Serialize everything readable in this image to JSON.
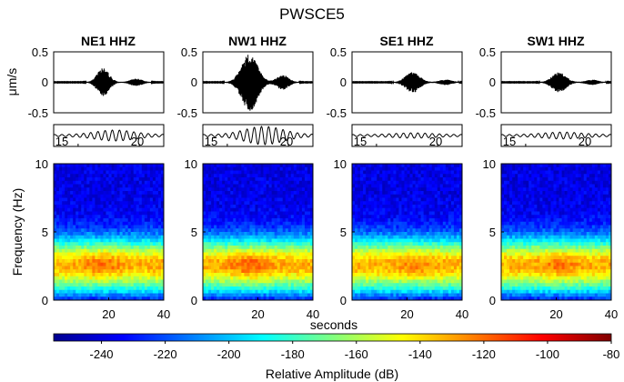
{
  "figure_title": "PWSCE5",
  "chart_data": {
    "type": "heatmap",
    "title": "PWSCE5",
    "panels": [
      {
        "station": "NE1 HHZ",
        "peak_um_s": 0.23,
        "burst_center_s": 18.0,
        "burst_width_s": 3.0,
        "inset_amp": 0.55,
        "spec_peak_s": 18,
        "spec_gain_db": 2
      },
      {
        "station": "NW1 HHZ",
        "peak_um_s": 0.47,
        "burst_center_s": 17.0,
        "burst_width_s": 4.0,
        "inset_amp": 1.0,
        "spec_peak_s": 17,
        "spec_gain_db": 6
      },
      {
        "station": "SE1 HHZ",
        "peak_um_s": 0.17,
        "burst_center_s": 22.0,
        "burst_width_s": 3.5,
        "inset_amp": 0.2,
        "spec_peak_s": 23,
        "spec_gain_db": 0
      },
      {
        "station": "SW1 HHZ",
        "peak_um_s": 0.16,
        "burst_center_s": 21.0,
        "burst_width_s": 3.5,
        "inset_amp": 0.3,
        "spec_peak_s": 21,
        "spec_gain_db": 1
      }
    ],
    "waveform": {
      "ylabel": "μm/s",
      "ylim": [
        -0.5,
        0.5
      ],
      "yticks": [
        "0.5",
        "0",
        "-0.5"
      ],
      "xlim": [
        0,
        40
      ]
    },
    "inset": {
      "xlim": [
        13,
        22
      ],
      "tick_labels": [
        "15",
        "20"
      ],
      "tick_values": [
        15,
        20
      ]
    },
    "spectrogram": {
      "ylabel": "Frequency (Hz)",
      "xlabel": "seconds",
      "xlim": [
        0,
        40
      ],
      "ylim": [
        0,
        10
      ],
      "xticks": [
        "20",
        "40"
      ],
      "yticks": [
        "10",
        "5",
        "0"
      ]
    },
    "colorbar": {
      "label": "Relative Amplitude  (dB)",
      "range": [
        -255,
        -80
      ],
      "ticks": [
        "-240",
        "-220",
        "-200",
        "-180",
        "-160",
        "-140",
        "-120",
        "-100",
        "-80"
      ],
      "colormap": "jet"
    }
  }
}
